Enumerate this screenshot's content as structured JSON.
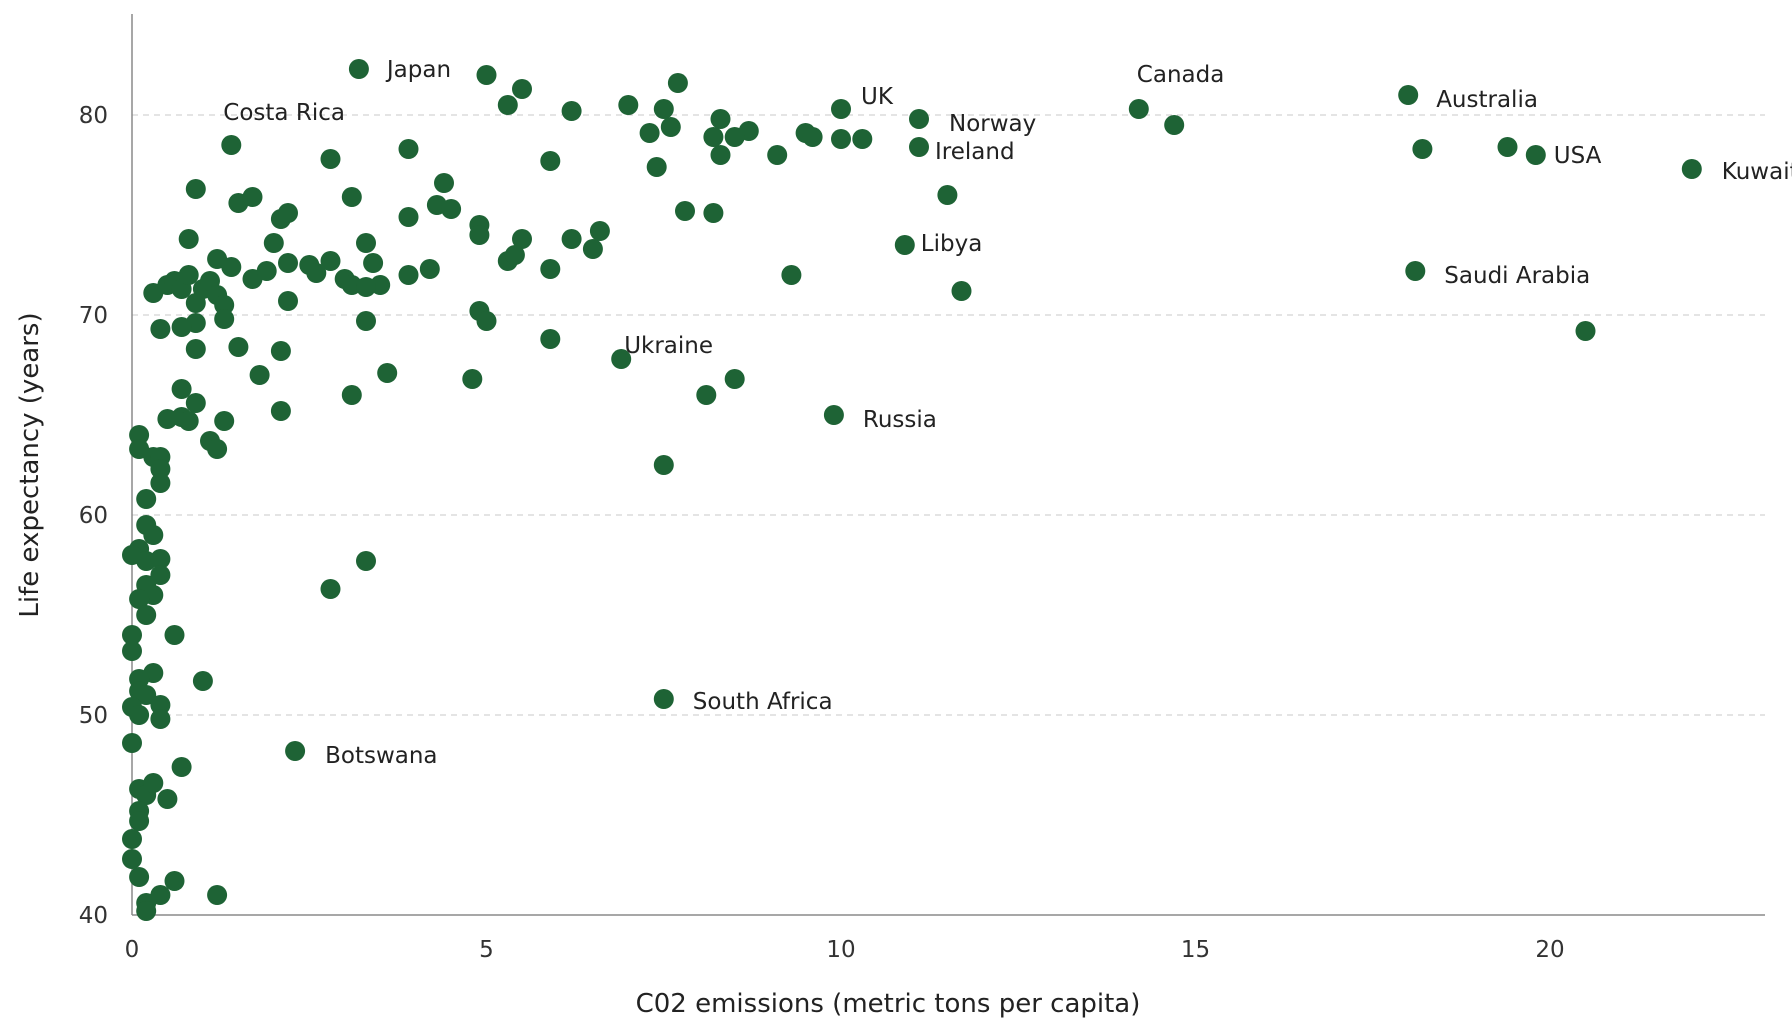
{
  "chart_data": {
    "type": "scatter",
    "title": "",
    "xlabel": "C02 emissions (metric tons per capita)",
    "ylabel": "Life expectancy (years)",
    "xlim": [
      0,
      23
    ],
    "ylim": [
      40,
      85
    ],
    "xticks": [
      "0",
      "5",
      "10",
      "15",
      "20"
    ],
    "yticks": [
      "40",
      "50",
      "60",
      "70",
      "80"
    ],
    "grid": "horizontal dashed",
    "point_color": "#1e6335",
    "annotations": [
      {
        "label": "Japan",
        "x": 3.2,
        "y": 82.3
      },
      {
        "label": "Costa Rica",
        "x": 1.4,
        "y": 78.5
      },
      {
        "label": "UK",
        "x": 10.0,
        "y": 80.3
      },
      {
        "label": "Norway",
        "x": 11.1,
        "y": 79.8
      },
      {
        "label": "Ireland",
        "x": 11.1,
        "y": 78.4
      },
      {
        "label": "Canada",
        "x": 14.2,
        "y": 80.3
      },
      {
        "label": "Australia",
        "x": 18.0,
        "y": 81.0
      },
      {
        "label": "USA",
        "x": 19.8,
        "y": 78.0
      },
      {
        "label": "Kuwait",
        "x": 22.0,
        "y": 77.3
      },
      {
        "label": "Libya",
        "x": 10.9,
        "y": 73.5
      },
      {
        "label": "Saudi Arabia",
        "x": 18.1,
        "y": 72.2
      },
      {
        "label": "Ukraine",
        "x": 6.9,
        "y": 67.8
      },
      {
        "label": "Russia",
        "x": 9.9,
        "y": 65.0
      },
      {
        "label": "South Africa",
        "x": 7.5,
        "y": 50.8
      },
      {
        "label": "Botswana",
        "x": 2.3,
        "y": 48.2
      }
    ],
    "points": [
      [
        3.2,
        82.3
      ],
      [
        1.4,
        78.5
      ],
      [
        10.0,
        80.3
      ],
      [
        11.1,
        79.8
      ],
      [
        11.1,
        78.4
      ],
      [
        14.2,
        80.3
      ],
      [
        18.0,
        81.0
      ],
      [
        19.8,
        78.0
      ],
      [
        22.0,
        77.3
      ],
      [
        10.9,
        73.5
      ],
      [
        18.1,
        72.2
      ],
      [
        6.9,
        67.8
      ],
      [
        9.9,
        65.0
      ],
      [
        7.5,
        50.8
      ],
      [
        2.3,
        48.2
      ],
      [
        5.0,
        82.0
      ],
      [
        5.5,
        81.3
      ],
      [
        7.7,
        81.6
      ],
      [
        5.3,
        80.5
      ],
      [
        6.2,
        80.2
      ],
      [
        7.0,
        80.5
      ],
      [
        7.5,
        80.3
      ],
      [
        7.6,
        79.4
      ],
      [
        7.3,
        79.1
      ],
      [
        8.3,
        79.8
      ],
      [
        8.7,
        79.2
      ],
      [
        8.2,
        78.9
      ],
      [
        8.5,
        78.9
      ],
      [
        8.3,
        78.0
      ],
      [
        9.1,
        78.0
      ],
      [
        9.5,
        79.1
      ],
      [
        9.6,
        78.9
      ],
      [
        10.0,
        78.8
      ],
      [
        10.3,
        78.8
      ],
      [
        14.7,
        79.5
      ],
      [
        18.2,
        78.3
      ],
      [
        19.4,
        78.4
      ],
      [
        7.4,
        77.4
      ],
      [
        5.9,
        77.7
      ],
      [
        2.8,
        77.8
      ],
      [
        3.9,
        78.3
      ],
      [
        0.9,
        76.3
      ],
      [
        1.5,
        75.6
      ],
      [
        1.7,
        75.9
      ],
      [
        2.1,
        74.8
      ],
      [
        2.2,
        75.1
      ],
      [
        3.1,
        75.9
      ],
      [
        3.9,
        74.9
      ],
      [
        4.3,
        75.5
      ],
      [
        4.4,
        76.6
      ],
      [
        4.5,
        75.3
      ],
      [
        11.5,
        76.0
      ],
      [
        7.8,
        75.2
      ],
      [
        8.2,
        75.1
      ],
      [
        4.9,
        74.5
      ],
      [
        4.9,
        74.0
      ],
      [
        5.5,
        73.8
      ],
      [
        6.2,
        73.8
      ],
      [
        6.6,
        74.2
      ],
      [
        6.5,
        73.3
      ],
      [
        0.8,
        73.8
      ],
      [
        1.2,
        72.8
      ],
      [
        1.4,
        72.4
      ],
      [
        1.7,
        71.8
      ],
      [
        1.9,
        72.2
      ],
      [
        2.0,
        73.6
      ],
      [
        2.2,
        72.6
      ],
      [
        2.5,
        72.5
      ],
      [
        2.6,
        72.1
      ],
      [
        2.8,
        72.7
      ],
      [
        3.0,
        71.8
      ],
      [
        3.1,
        71.5
      ],
      [
        3.3,
        73.6
      ],
      [
        3.4,
        72.6
      ],
      [
        3.5,
        71.5
      ],
      [
        3.9,
        72.0
      ],
      [
        4.2,
        72.3
      ],
      [
        5.3,
        72.7
      ],
      [
        5.4,
        73.0
      ],
      [
        5.9,
        72.3
      ],
      [
        9.3,
        72.0
      ],
      [
        11.7,
        71.2
      ],
      [
        0.3,
        71.1
      ],
      [
        0.5,
        71.5
      ],
      [
        0.6,
        71.7
      ],
      [
        0.7,
        71.3
      ],
      [
        0.8,
        72.0
      ],
      [
        0.9,
        70.6
      ],
      [
        1.0,
        71.3
      ],
      [
        1.1,
        71.7
      ],
      [
        1.2,
        71.0
      ],
      [
        1.3,
        70.5
      ],
      [
        2.2,
        70.7
      ],
      [
        3.3,
        71.4
      ],
      [
        4.9,
        70.2
      ],
      [
        5.0,
        69.7
      ],
      [
        3.3,
        69.7
      ],
      [
        1.3,
        69.8
      ],
      [
        0.9,
        69.6
      ],
      [
        0.7,
        69.4
      ],
      [
        0.4,
        69.3
      ],
      [
        1.5,
        68.4
      ],
      [
        2.1,
        68.2
      ],
      [
        0.9,
        68.3
      ],
      [
        5.9,
        68.8
      ],
      [
        20.5,
        69.2
      ],
      [
        0.7,
        66.3
      ],
      [
        1.8,
        67.0
      ],
      [
        3.6,
        67.1
      ],
      [
        4.8,
        66.8
      ],
      [
        8.5,
        66.8
      ],
      [
        8.1,
        66.0
      ],
      [
        3.1,
        66.0
      ],
      [
        0.9,
        65.6
      ],
      [
        2.1,
        65.2
      ],
      [
        0.5,
        64.8
      ],
      [
        0.7,
        64.9
      ],
      [
        0.8,
        64.7
      ],
      [
        1.3,
        64.7
      ],
      [
        1.1,
        63.7
      ],
      [
        1.2,
        63.3
      ],
      [
        0.1,
        64.0
      ],
      [
        0.1,
        63.3
      ],
      [
        0.3,
        62.9
      ],
      [
        0.4,
        62.9
      ],
      [
        0.4,
        62.3
      ],
      [
        0.4,
        61.6
      ],
      [
        0.2,
        60.8
      ],
      [
        7.5,
        62.5
      ],
      [
        0.2,
        59.5
      ],
      [
        0.3,
        59.0
      ],
      [
        0.1,
        58.3
      ],
      [
        0.0,
        58.0
      ],
      [
        0.2,
        57.7
      ],
      [
        0.4,
        57.8
      ],
      [
        0.4,
        57.0
      ],
      [
        3.3,
        57.7
      ],
      [
        0.2,
        56.5
      ],
      [
        0.3,
        56.0
      ],
      [
        0.1,
        55.8
      ],
      [
        0.2,
        55.0
      ],
      [
        2.8,
        56.3
      ],
      [
        0.0,
        54.0
      ],
      [
        0.6,
        54.0
      ],
      [
        0.0,
        53.2
      ],
      [
        0.3,
        52.1
      ],
      [
        0.1,
        51.8
      ],
      [
        0.1,
        51.2
      ],
      [
        0.2,
        51.0
      ],
      [
        1.0,
        51.7
      ],
      [
        0.4,
        50.5
      ],
      [
        0.0,
        50.4
      ],
      [
        0.1,
        50.0
      ],
      [
        0.4,
        49.8
      ],
      [
        0.0,
        48.6
      ],
      [
        0.7,
        47.4
      ],
      [
        0.1,
        46.3
      ],
      [
        0.2,
        46.0
      ],
      [
        0.3,
        46.6
      ],
      [
        0.5,
        45.8
      ],
      [
        0.1,
        45.2
      ],
      [
        0.1,
        44.7
      ],
      [
        0.0,
        43.8
      ],
      [
        0.0,
        42.8
      ],
      [
        0.1,
        41.9
      ],
      [
        0.6,
        41.7
      ],
      [
        0.4,
        41.0
      ],
      [
        0.2,
        40.6
      ],
      [
        1.2,
        41.0
      ],
      [
        0.2,
        40.2
      ]
    ]
  }
}
